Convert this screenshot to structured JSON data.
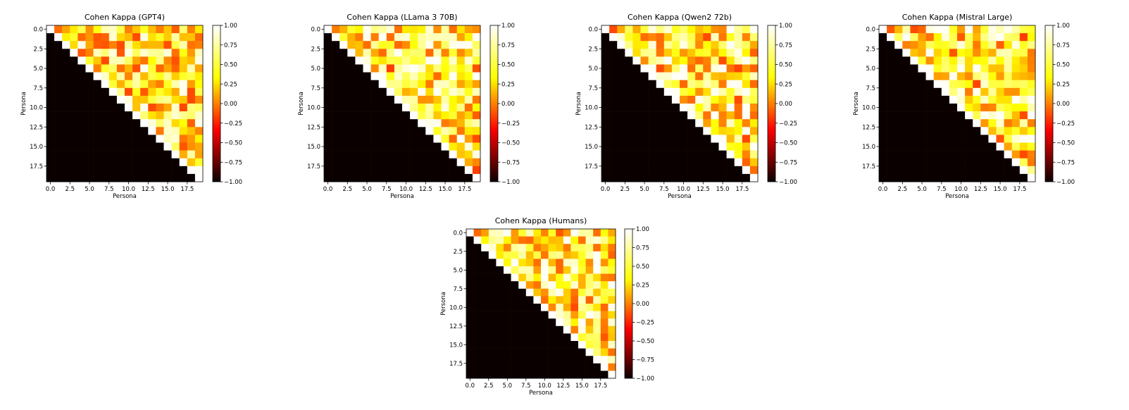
{
  "figure": {
    "colormap": "hot",
    "colormap_stops": [
      "#0b0000",
      "#ff0000",
      "#ffff00",
      "#ffffff"
    ]
  },
  "chart_data": [
    {
      "type": "heatmap",
      "title": "Cohen Kappa (GPT4)",
      "xlabel": "Persona",
      "ylabel": "Persona",
      "grid_size": 20,
      "xlim": [
        -0.5,
        19.5
      ],
      "ylim": [
        19.5,
        -0.5
      ],
      "x_ticks": [
        0.0,
        2.5,
        5.0,
        7.5,
        10.0,
        12.5,
        15.0,
        17.5
      ],
      "y_ticks": [
        0.0,
        2.5,
        5.0,
        7.5,
        10.0,
        12.5,
        15.0,
        17.5
      ],
      "x_tick_labels": [
        "0.0",
        "2.5",
        "5.0",
        "7.5",
        "10.0",
        "12.5",
        "15.0",
        "17.5"
      ],
      "y_tick_labels": [
        "0.0",
        "2.5",
        "5.0",
        "7.5",
        "10.0",
        "12.5",
        "15.0",
        "17.5"
      ],
      "colorbar": {
        "range": [
          -1.0,
          1.0
        ],
        "ticks": [
          1.0,
          0.75,
          0.5,
          0.25,
          0.0,
          -0.25,
          -0.5,
          -0.75,
          -1.0
        ],
        "tick_labels": [
          "1.00",
          "0.75",
          "0.50",
          "0.25",
          "0.00",
          "−0.25",
          "−0.50",
          "−0.75",
          "−1.00"
        ]
      },
      "below_diagonal_value": -1.0,
      "diagonal_value": 1.0,
      "upper_triangle_mean": 0.45
    },
    {
      "type": "heatmap",
      "title": "Cohen Kappa (LLama 3 70B)",
      "xlabel": "Persona",
      "ylabel": "Persona",
      "grid_size": 20,
      "xlim": [
        -0.5,
        19.5
      ],
      "ylim": [
        19.5,
        -0.5
      ],
      "x_ticks": [
        0.0,
        2.5,
        5.0,
        7.5,
        10.0,
        12.5,
        15.0,
        17.5
      ],
      "y_ticks": [
        0.0,
        2.5,
        5.0,
        7.5,
        10.0,
        12.5,
        15.0,
        17.5
      ],
      "x_tick_labels": [
        "0.0",
        "2.5",
        "5.0",
        "7.5",
        "10.0",
        "12.5",
        "15.0",
        "17.5"
      ],
      "y_tick_labels": [
        "0.0",
        "2.5",
        "5.0",
        "7.5",
        "10.0",
        "12.5",
        "15.0",
        "17.5"
      ],
      "colorbar": {
        "range": [
          -1.0,
          1.0
        ],
        "ticks": [
          1.0,
          0.75,
          0.5,
          0.25,
          0.0,
          -0.25,
          -0.5,
          -0.75,
          -1.0
        ],
        "tick_labels": [
          "1.00",
          "0.75",
          "0.50",
          "0.25",
          "0.00",
          "−0.25",
          "−0.50",
          "−0.75",
          "−1.00"
        ]
      },
      "below_diagonal_value": -1.0,
      "diagonal_value": 1.0,
      "upper_triangle_mean": 0.5
    },
    {
      "type": "heatmap",
      "title": "Cohen Kappa (Qwen2 72b)",
      "xlabel": "Persona",
      "ylabel": "Persona",
      "grid_size": 20,
      "xlim": [
        -0.5,
        19.5
      ],
      "ylim": [
        19.5,
        -0.5
      ],
      "x_ticks": [
        0.0,
        2.5,
        5.0,
        7.5,
        10.0,
        12.5,
        15.0,
        17.5
      ],
      "y_ticks": [
        0.0,
        2.5,
        5.0,
        7.5,
        10.0,
        12.5,
        15.0,
        17.5
      ],
      "x_tick_labels": [
        "0.0",
        "2.5",
        "5.0",
        "7.5",
        "10.0",
        "12.5",
        "15.0",
        "17.5"
      ],
      "y_tick_labels": [
        "0.0",
        "2.5",
        "5.0",
        "7.5",
        "10.0",
        "12.5",
        "15.0",
        "17.5"
      ],
      "colorbar": {
        "range": [
          -1.0,
          1.0
        ],
        "ticks": [
          1.0,
          0.75,
          0.5,
          0.25,
          0.0,
          -0.25,
          -0.5,
          -0.75,
          -1.0
        ],
        "tick_labels": [
          "1.00",
          "0.75",
          "0.50",
          "0.25",
          "0.00",
          "−0.25",
          "−0.50",
          "−0.75",
          "−1.00"
        ]
      },
      "below_diagonal_value": -1.0,
      "diagonal_value": 1.0,
      "upper_triangle_mean": 0.5
    },
    {
      "type": "heatmap",
      "title": "Cohen Kappa (Mistral Large)",
      "xlabel": "Persona",
      "ylabel": "Persona",
      "grid_size": 20,
      "xlim": [
        -0.5,
        19.5
      ],
      "ylim": [
        19.5,
        -0.5
      ],
      "x_ticks": [
        0.0,
        2.5,
        5.0,
        7.5,
        10.0,
        12.5,
        15.0,
        17.5
      ],
      "y_ticks": [
        0.0,
        2.5,
        5.0,
        7.5,
        10.0,
        12.5,
        15.0,
        17.5
      ],
      "x_tick_labels": [
        "0.0",
        "2.5",
        "5.0",
        "7.5",
        "10.0",
        "12.5",
        "15.0",
        "17.5"
      ],
      "y_tick_labels": [
        "0.0",
        "2.5",
        "5.0",
        "7.5",
        "10.0",
        "12.5",
        "15.0",
        "17.5"
      ],
      "colorbar": {
        "range": [
          -1.0,
          1.0
        ],
        "ticks": [
          1.0,
          0.75,
          0.5,
          0.25,
          0.0,
          -0.25,
          -0.5,
          -0.75,
          -1.0
        ],
        "tick_labels": [
          "1.00",
          "0.75",
          "0.50",
          "0.25",
          "0.00",
          "−0.25",
          "−0.50",
          "−0.75",
          "−1.00"
        ]
      },
      "below_diagonal_value": -1.0,
      "diagonal_value": 1.0,
      "upper_triangle_mean": 0.55
    },
    {
      "type": "heatmap",
      "title": "Cohen Kappa (Humans)",
      "xlabel": "Persona",
      "ylabel": "Persona",
      "grid_size": 20,
      "xlim": [
        -0.5,
        19.5
      ],
      "ylim": [
        19.5,
        -0.5
      ],
      "x_ticks": [
        0.0,
        2.5,
        5.0,
        7.5,
        10.0,
        12.5,
        15.0,
        17.5
      ],
      "y_ticks": [
        0.0,
        2.5,
        5.0,
        7.5,
        10.0,
        12.5,
        15.0,
        17.5
      ],
      "x_tick_labels": [
        "0.0",
        "2.5",
        "5.0",
        "7.5",
        "10.0",
        "12.5",
        "15.0",
        "17.5"
      ],
      "y_tick_labels": [
        "0.0",
        "2.5",
        "5.0",
        "7.5",
        "10.0",
        "12.5",
        "15.0",
        "17.5"
      ],
      "colorbar": {
        "range": [
          -1.0,
          1.0
        ],
        "ticks": [
          1.0,
          0.75,
          0.5,
          0.25,
          0.0,
          -0.25,
          -0.5,
          -0.75,
          -1.0
        ],
        "tick_labels": [
          "1.00",
          "0.75",
          "0.50",
          "0.25",
          "0.00",
          "−0.25",
          "−0.50",
          "−0.75",
          "−1.00"
        ]
      },
      "below_diagonal_value": -1.0,
      "diagonal_value": 1.0,
      "upper_triangle_mean": 0.5
    }
  ]
}
